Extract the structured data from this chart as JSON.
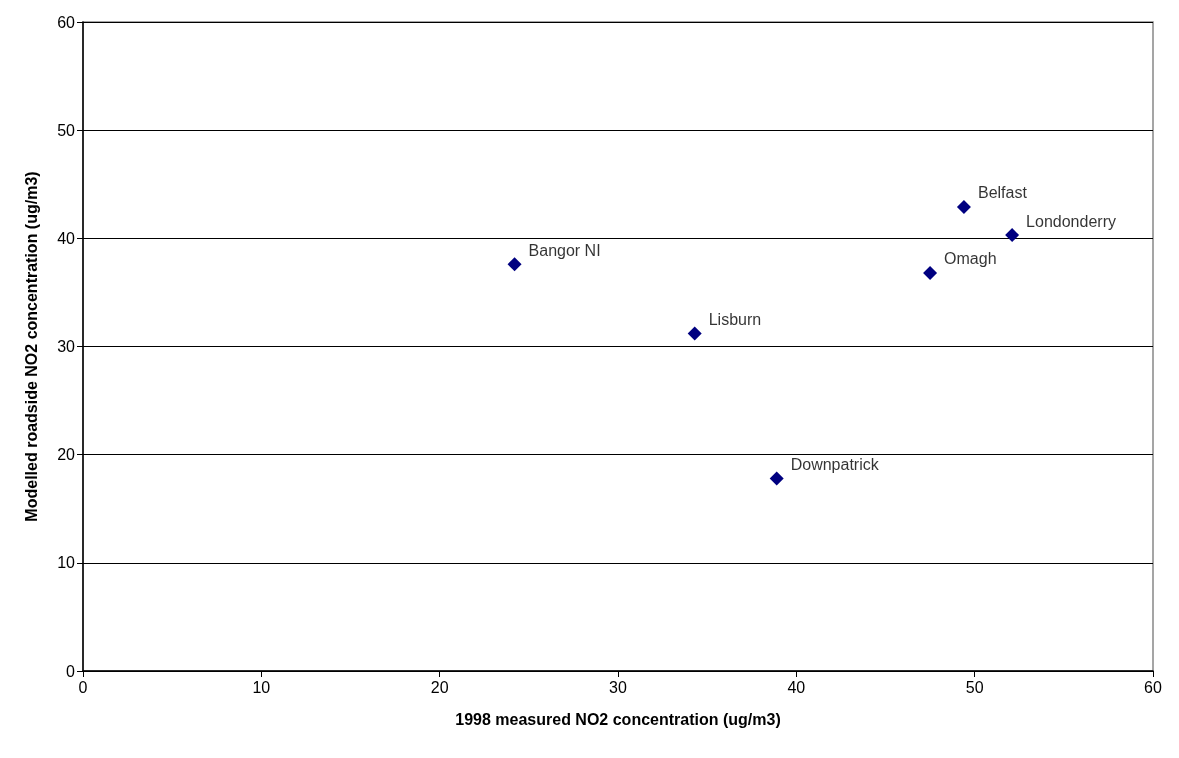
{
  "chart_data": {
    "type": "scatter",
    "xlabel": "1998 measured NO2 concentration (ug/m3)",
    "ylabel": "Modelled roadside NO2 concentration (ug/m3)",
    "x": [
      24.2,
      34.3,
      38.9,
      47.5,
      49.4,
      52.1
    ],
    "series": [
      {
        "color": "#000080",
        "values": [
          37.6,
          31.2,
          17.8,
          36.8,
          42.9,
          40.3
        ]
      }
    ],
    "annotations": [
      {
        "text": "Bangor NI",
        "x": 24.2,
        "y": 37.6
      },
      {
        "text": "Lisburn",
        "x": 34.3,
        "y": 31.2
      },
      {
        "text": "Downpatrick",
        "x": 38.9,
        "y": 17.8
      },
      {
        "text": "Omagh",
        "x": 47.5,
        "y": 36.8
      },
      {
        "text": "Belfast",
        "x": 49.4,
        "y": 42.9
      },
      {
        "text": "Londonderry",
        "x": 52.1,
        "y": 40.3
      }
    ],
    "xlim": [
      0,
      60
    ],
    "xticks": [
      0,
      10,
      20,
      30,
      40,
      50,
      60
    ],
    "ylim": [
      0,
      60
    ],
    "yticks": [
      0,
      10,
      20,
      30,
      40,
      50,
      60
    ],
    "grid": "y",
    "marker": "diamond"
  }
}
